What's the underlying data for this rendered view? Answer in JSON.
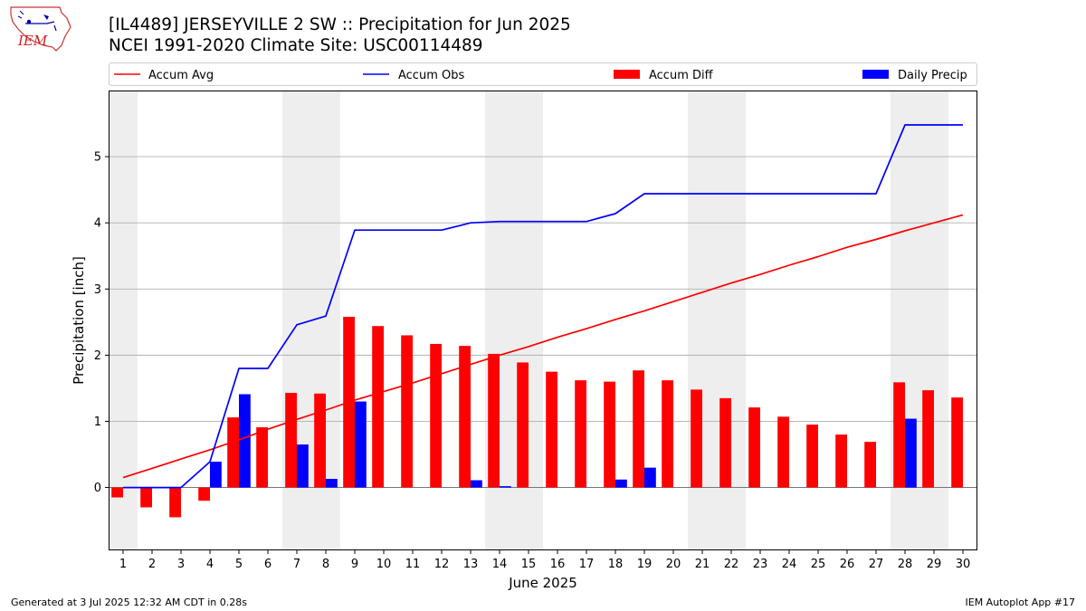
{
  "header": {
    "title": "[IL4489] JERSEYVILLE 2 SW :: Precipitation for Jun 2025",
    "subtitle": "NCEI 1991-2020 Climate Site: USC00114489",
    "logo_text": "IEM"
  },
  "footer": {
    "left": "Generated at 3 Jul 2025 12:32 AM CDT in 0.28s",
    "right": "IEM Autoplot App #17"
  },
  "colors": {
    "accum_avg": "#ff0000",
    "accum_obs": "#0000ff",
    "accum_diff": "#ff0000",
    "daily_precip": "#0000ff",
    "weekend_shading": "#eeeeee",
    "grid": "#b0b0b0"
  },
  "chart_data": {
    "type": "bar",
    "xlabel": "June 2025",
    "ylabel": "Precipitation [inch]",
    "xlim": [
      0.5,
      30.5
    ],
    "ylim": [
      -0.95,
      6.0
    ],
    "yticks": [
      0,
      1,
      2,
      3,
      4,
      5
    ],
    "grid": "horizontal",
    "legend_position": "top",
    "weekend_shading_days": [
      1,
      7,
      8,
      14,
      15,
      21,
      22,
      28,
      29
    ],
    "days": [
      1,
      2,
      3,
      4,
      5,
      6,
      7,
      8,
      9,
      10,
      11,
      12,
      13,
      14,
      15,
      16,
      17,
      18,
      19,
      20,
      21,
      22,
      23,
      24,
      25,
      26,
      27,
      28,
      29,
      30
    ],
    "series": [
      {
        "name": "Accum Avg",
        "type": "line",
        "values": [
          0.15,
          0.29,
          0.43,
          0.57,
          0.72,
          0.88,
          1.03,
          1.17,
          1.32,
          1.45,
          1.58,
          1.72,
          1.86,
          2.0,
          2.13,
          2.27,
          2.4,
          2.54,
          2.67,
          2.81,
          2.95,
          3.09,
          3.22,
          3.36,
          3.49,
          3.63,
          3.75,
          3.88,
          4.0,
          4.12
        ]
      },
      {
        "name": "Accum Obs",
        "type": "line",
        "values": [
          0,
          0,
          0,
          0.39,
          1.8,
          1.8,
          2.46,
          2.59,
          3.89,
          3.89,
          3.89,
          3.89,
          4.0,
          4.02,
          4.02,
          4.02,
          4.02,
          4.14,
          4.44,
          4.44,
          4.44,
          4.44,
          4.44,
          4.44,
          4.44,
          4.44,
          4.44,
          5.48,
          5.48,
          5.48
        ]
      },
      {
        "name": "Accum Diff",
        "type": "bar",
        "values": [
          -0.15,
          -0.3,
          -0.45,
          -0.2,
          1.06,
          0.91,
          1.43,
          1.42,
          2.58,
          2.44,
          2.3,
          2.17,
          2.14,
          2.02,
          1.89,
          1.75,
          1.62,
          1.6,
          1.77,
          1.62,
          1.48,
          1.35,
          1.21,
          1.07,
          0.95,
          0.8,
          0.69,
          1.59,
          1.47,
          1.36
        ]
      },
      {
        "name": "Daily Precip",
        "type": "bar",
        "values": [
          0,
          0,
          0,
          0.39,
          1.41,
          0,
          0.65,
          0.13,
          1.3,
          0,
          0,
          0,
          0.11,
          0.02,
          0,
          0,
          0,
          0.12,
          0.3,
          0,
          0,
          0,
          0,
          0,
          0,
          0,
          0,
          1.04,
          0,
          0
        ]
      }
    ]
  }
}
